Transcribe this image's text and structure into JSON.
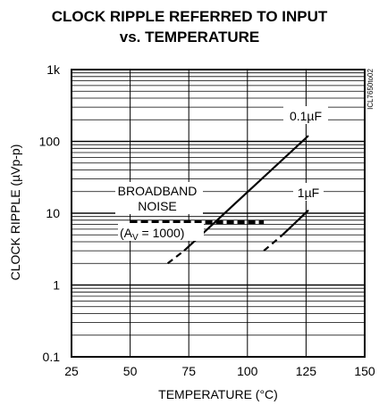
{
  "chart_data": {
    "type": "line",
    "title": "CLOCK RIPPLE REFERRED TO INPUT",
    "subtitle": "vs. TEMPERATURE",
    "xlabel": "TEMPERATURE (°C)",
    "ylabel": "CLOCK RIPPLE (µVp-p)",
    "xlim": [
      25,
      150
    ],
    "ylim": [
      0.1,
      1000
    ],
    "yscale": "log",
    "grid": true,
    "x_ticks": [
      "25",
      "50",
      "75",
      "100",
      "125",
      "150"
    ],
    "y_ticks": [
      "0.1",
      "1",
      "10",
      "100",
      "1k"
    ],
    "side_label": "ICL7650to02",
    "series": [
      {
        "name": "0.1µF",
        "solid": {
          "x": [
            73,
            126
          ],
          "y": [
            3,
            120
          ]
        },
        "dashed": {
          "x": [
            66,
            73
          ],
          "y": [
            2,
            3
          ]
        }
      },
      {
        "name": "1µF",
        "solid": {
          "x": [
            115,
            126
          ],
          "y": [
            5,
            11
          ]
        },
        "dashed": {
          "x": [
            107,
            115
          ],
          "y": [
            3,
            5
          ]
        }
      },
      {
        "name": "BROADBAND NOISE",
        "style": "thick-dashed",
        "x": [
          50,
          107
        ],
        "y": [
          7.5,
          7.5
        ]
      }
    ],
    "annotations": {
      "broadband_line1": "BROADBAND",
      "broadband_line2": "NOISE",
      "av_prefix": "(A",
      "av_sub": "V",
      "av_suffix": " = 1000)"
    }
  }
}
